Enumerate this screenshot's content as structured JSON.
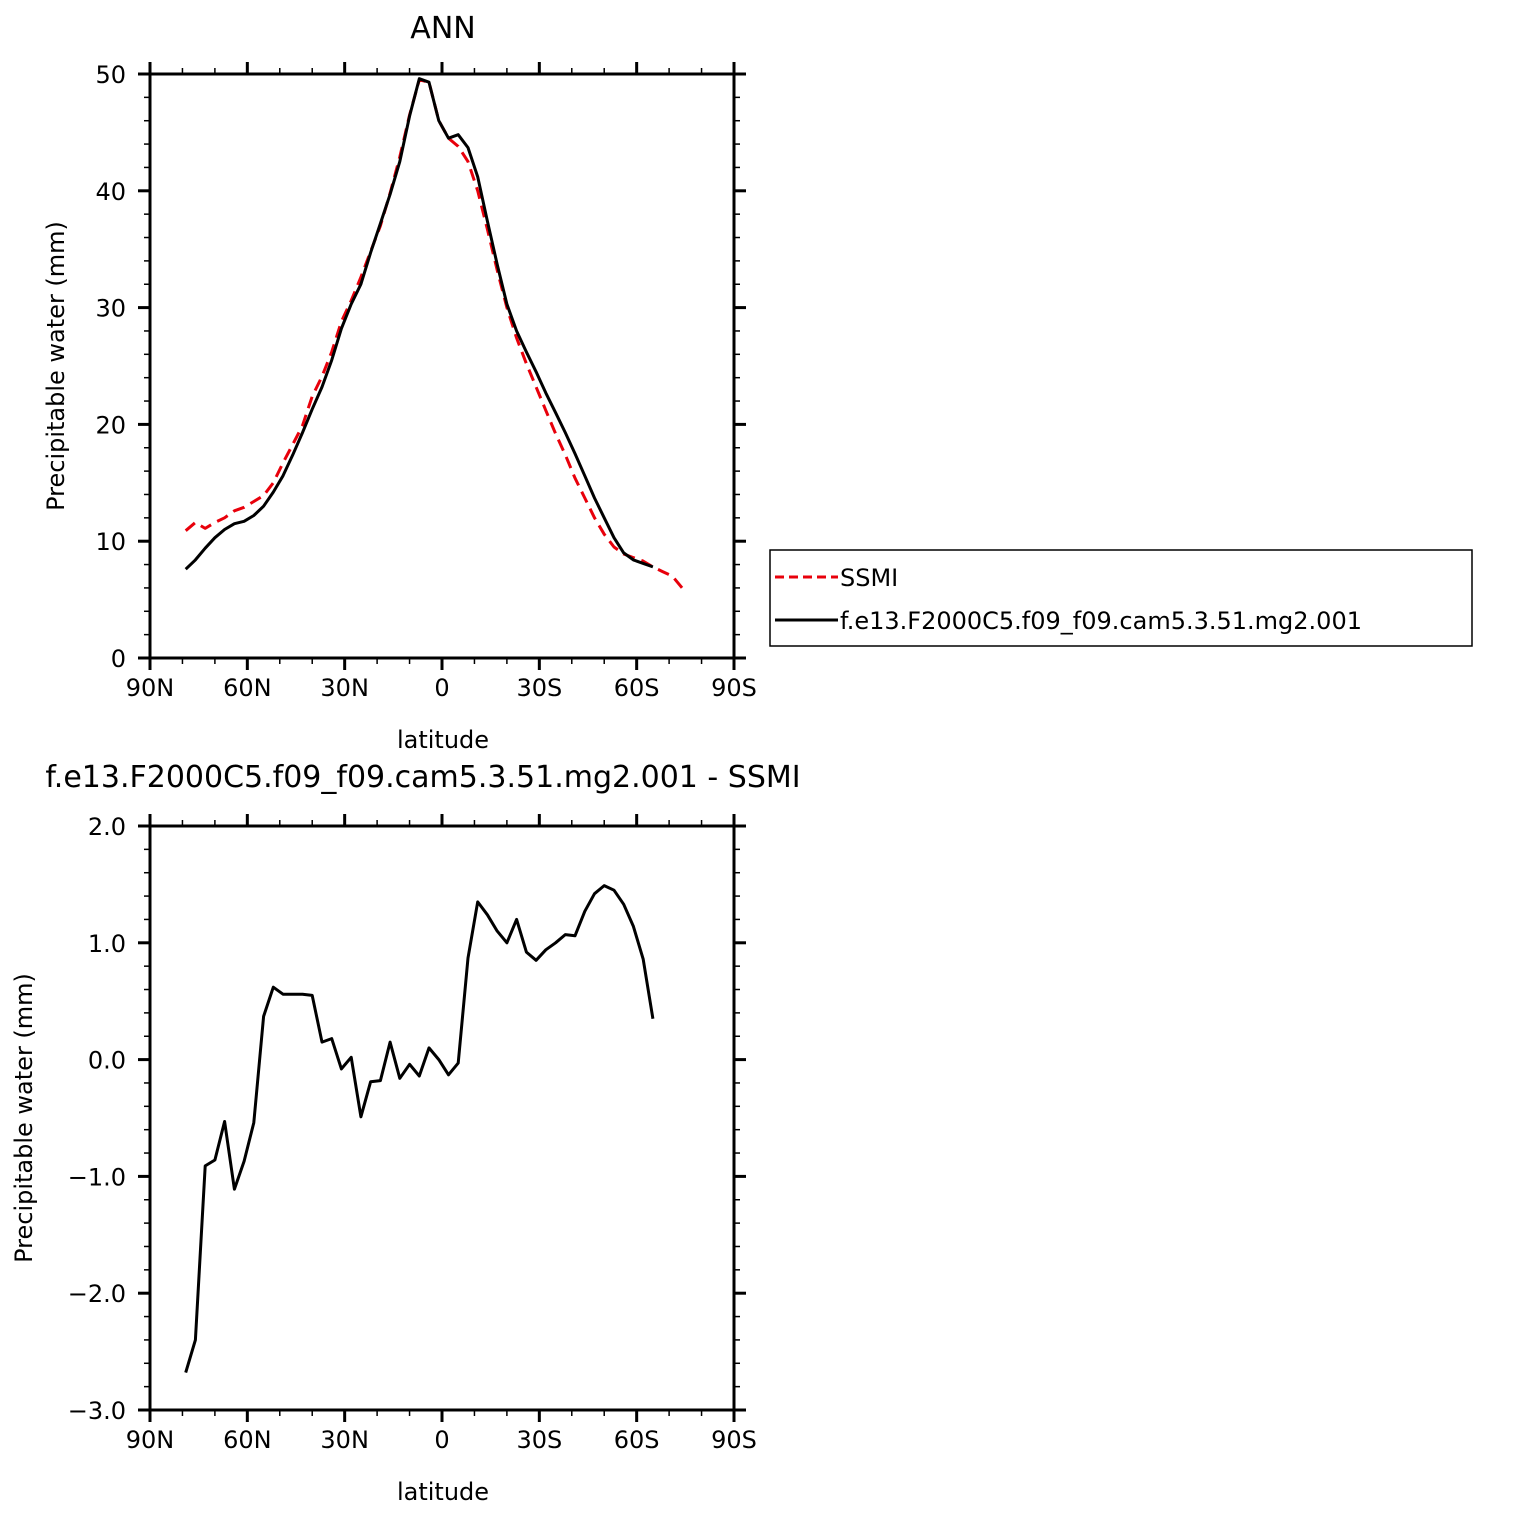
{
  "chart_data": [
    {
      "type": "line",
      "title": "ANN",
      "xlabel": "latitude",
      "ylabel": "Precipitable water (mm)",
      "xlim": [
        90,
        -90
      ],
      "ylim": [
        0,
        50
      ],
      "x_ticks": [
        90,
        60,
        30,
        0,
        -30,
        -60,
        -90
      ],
      "x_tick_labels": [
        "90N",
        "60N",
        "30N",
        "0",
        "30S",
        "60S",
        "90S"
      ],
      "y_ticks": [
        0,
        10,
        20,
        30,
        40,
        50
      ],
      "y_tick_labels": [
        "0",
        "10",
        "20",
        "30",
        "40",
        "50"
      ],
      "grid": false,
      "legend": {
        "placement": "right",
        "entries": [
          "SSMI",
          "f.e13.F2000C5.f09_f09.cam5.3.51.mg2.001"
        ]
      },
      "series": [
        {
          "name": "SSMI",
          "color": "#e8000b",
          "dash": "dashed",
          "x": [
            79,
            76,
            73,
            70,
            67,
            64,
            61,
            58,
            55,
            52,
            49,
            46,
            43,
            40,
            37,
            34,
            31,
            28,
            25,
            22,
            19,
            16,
            13,
            10,
            7,
            4,
            1,
            -2,
            -5,
            -8,
            -11,
            -14,
            -17,
            -20,
            -23,
            -26,
            -29,
            -32,
            -35,
            -38,
            -41,
            -44,
            -47,
            -50,
            -53,
            -56,
            -59,
            -62,
            -65,
            -68,
            -71,
            -74
          ],
          "values": [
            10.9,
            11.6,
            11.1,
            11.6,
            12.0,
            12.6,
            12.9,
            13.4,
            13.9,
            15.0,
            16.7,
            18.3,
            19.9,
            22.4,
            24.1,
            26.2,
            28.8,
            30.6,
            32.6,
            34.8,
            37.0,
            39.8,
            42.9,
            46.5,
            49.5,
            49.3,
            46.0,
            44.5,
            43.8,
            42.5,
            40.0,
            36.7,
            33.2,
            30.0,
            27.4,
            25.2,
            23.2,
            21.2,
            19.2,
            17.4,
            15.4,
            13.7,
            12.0,
            10.6,
            9.5,
            8.9,
            8.6,
            8.3,
            7.8,
            7.4,
            7.0,
            6.0
          ]
        },
        {
          "name": "f.e13.F2000C5.f09_f09.cam5.3.51.mg2.001",
          "color": "#000000",
          "dash": "solid",
          "x": [
            79,
            76,
            73,
            70,
            67,
            64,
            61,
            58,
            55,
            52,
            49,
            46,
            43,
            40,
            37,
            34,
            31,
            28,
            25,
            22,
            19,
            16,
            13,
            10,
            7,
            4,
            1,
            -2,
            -5,
            -8,
            -11,
            -14,
            -17,
            -20,
            -23,
            -26,
            -29,
            -32,
            -35,
            -38,
            -41,
            -44,
            -47,
            -50,
            -53,
            -56,
            -59,
            -62,
            -65
          ],
          "values": [
            7.6,
            8.4,
            9.4,
            10.3,
            11.0,
            11.5,
            11.7,
            12.2,
            13.0,
            14.2,
            15.6,
            17.4,
            19.3,
            21.3,
            23.2,
            25.5,
            28.2,
            30.3,
            32.0,
            34.7,
            37.2,
            39.7,
            42.5,
            46.4,
            49.6,
            49.3,
            46.0,
            44.5,
            44.8,
            43.7,
            41.2,
            37.4,
            33.7,
            30.3,
            28.0,
            26.2,
            24.5,
            22.7,
            21.0,
            19.3,
            17.5,
            15.6,
            13.7,
            12.0,
            10.3,
            9.0,
            8.4,
            8.1,
            7.8
          ]
        }
      ]
    },
    {
      "type": "line",
      "title": "f.e13.F2000C5.f09_f09.cam5.3.51.mg2.001 - SSMI",
      "xlabel": "latitude",
      "ylabel": "Precipitable water (mm)",
      "xlim": [
        90,
        -90
      ],
      "ylim": [
        -3.0,
        2.0
      ],
      "x_ticks": [
        90,
        60,
        30,
        0,
        -30,
        -60,
        -90
      ],
      "x_tick_labels": [
        "90N",
        "60N",
        "30N",
        "0",
        "30S",
        "60S",
        "90S"
      ],
      "y_ticks": [
        2.0,
        1.0,
        0.0,
        -1.0,
        -2.0,
        -3.0
      ],
      "y_tick_labels": [
        "2.0",
        "1.0",
        "0.0",
        "−1.0",
        "−2.0",
        "−3.0"
      ],
      "grid": false,
      "series": [
        {
          "color": "#000000",
          "dash": "solid",
          "x": [
            79,
            76,
            73,
            70,
            67,
            64,
            61,
            58,
            55,
            52,
            49,
            46,
            43,
            40,
            37,
            34,
            31,
            28,
            25,
            22,
            19,
            16,
            13,
            10,
            7,
            4,
            1,
            -2,
            -5,
            -8,
            -11,
            -14,
            -17,
            -20,
            -23,
            -26,
            -29,
            -32,
            -35,
            -38,
            -41,
            -44,
            -47,
            -50,
            -53,
            -56,
            -59,
            -62,
            -65
          ],
          "values": [
            -2.68,
            -2.4,
            -0.91,
            -0.86,
            -0.53,
            -1.11,
            -0.87,
            -0.54,
            0.37,
            0.62,
            0.56,
            0.56,
            0.56,
            0.55,
            0.15,
            0.18,
            -0.08,
            0.02,
            -0.49,
            -0.19,
            -0.18,
            0.15,
            -0.16,
            -0.04,
            -0.14,
            0.1,
            0.0,
            -0.13,
            -0.03,
            0.87,
            1.35,
            1.24,
            1.1,
            1.0,
            1.2,
            0.92,
            0.85,
            0.94,
            1.0,
            1.07,
            1.06,
            1.27,
            1.42,
            1.49,
            1.45,
            1.33,
            1.14,
            0.86,
            0.35
          ]
        }
      ]
    }
  ]
}
